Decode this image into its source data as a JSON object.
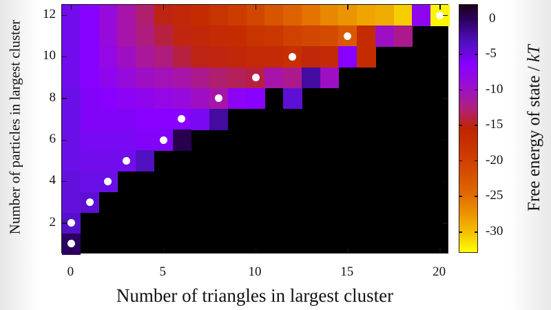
{
  "chart_data": {
    "type": "heatmap",
    "title": "",
    "xlabel": "Number of triangles in largest cluster",
    "ylabel": "Number of particles in largest cluster",
    "colorbar_label": "Free energy of state / kT",
    "colorbar_label_main": "Free energy of state / ",
    "colorbar_label_italic": "kT",
    "xlim": [
      -0.5,
      20.5
    ],
    "ylim": [
      0.5,
      12.5
    ],
    "clim": [
      -33,
      2
    ],
    "x_ticks": [
      0,
      5,
      10,
      15,
      20
    ],
    "y_ticks": [
      2,
      4,
      6,
      8,
      10,
      12
    ],
    "colorbar_ticks": [
      0,
      -5,
      -10,
      -15,
      -20,
      -25,
      -30
    ],
    "missing_color": "#000000",
    "grid": false,
    "rows": [
      {
        "y": 12,
        "values": [
          -5.5,
          -7,
          -9,
          -11,
          -13,
          -15,
          -16,
          -17,
          -18,
          -19,
          -20,
          -21.5,
          -23,
          -24.5,
          -26,
          -27,
          -28,
          -28.5,
          -30.5,
          -8,
          -32.5
        ]
      },
      {
        "y": 11,
        "values": [
          -5.5,
          -7,
          -9,
          -11,
          -12.5,
          -14,
          -15.5,
          -16,
          -16.5,
          -17,
          -18,
          -18.5,
          -19.5,
          -20,
          -20.5,
          -22,
          -17,
          -10,
          -12
        ]
      },
      {
        "y": 10,
        "values": [
          -5.5,
          -7,
          -8.5,
          -10,
          -11.5,
          -12.5,
          -14,
          -15,
          -15.5,
          -16,
          -16.5,
          -16.5,
          -17.5,
          -16,
          -16.5,
          -7,
          -17
        ]
      },
      {
        "y": 9,
        "values": [
          -5.5,
          -7,
          -8,
          -9,
          -10,
          -10.5,
          -11,
          -12,
          -13,
          -13.5,
          -14,
          -11,
          -12,
          -2,
          -10
        ]
      },
      {
        "y": 8,
        "values": [
          -5,
          -6.5,
          -7,
          -7.5,
          -8,
          -8.5,
          -9,
          -10,
          -11,
          -7.5,
          -7,
          null,
          -4
        ]
      },
      {
        "y": 7,
        "values": [
          -5,
          -6.5,
          -6.5,
          -6.5,
          -7,
          -7,
          -7,
          -6,
          -2
        ]
      },
      {
        "y": 6,
        "values": [
          -5,
          -6,
          -6,
          -6,
          -6.5,
          -6.5,
          0.5
        ]
      },
      {
        "y": 5,
        "values": [
          -5,
          -5.5,
          -5.5,
          -5.5,
          -3
        ]
      },
      {
        "y": 4,
        "values": [
          -4.5,
          -5,
          -5
        ]
      },
      {
        "y": 3,
        "values": [
          -4.5,
          -4
        ]
      },
      {
        "y": 2,
        "values": [
          -3.5
        ]
      },
      {
        "y": 1,
        "values": [
          0
        ]
      }
    ],
    "markers": [
      {
        "x": 0,
        "y": 1
      },
      {
        "x": 0,
        "y": 2
      },
      {
        "x": 1,
        "y": 3
      },
      {
        "x": 2,
        "y": 4
      },
      {
        "x": 3,
        "y": 5
      },
      {
        "x": 5,
        "y": 6
      },
      {
        "x": 6,
        "y": 7
      },
      {
        "x": 8,
        "y": 8
      },
      {
        "x": 10,
        "y": 9
      },
      {
        "x": 12,
        "y": 10
      },
      {
        "x": 15,
        "y": 11
      },
      {
        "x": 20,
        "y": 12
      }
    ],
    "marker_color": "#ffffff"
  }
}
